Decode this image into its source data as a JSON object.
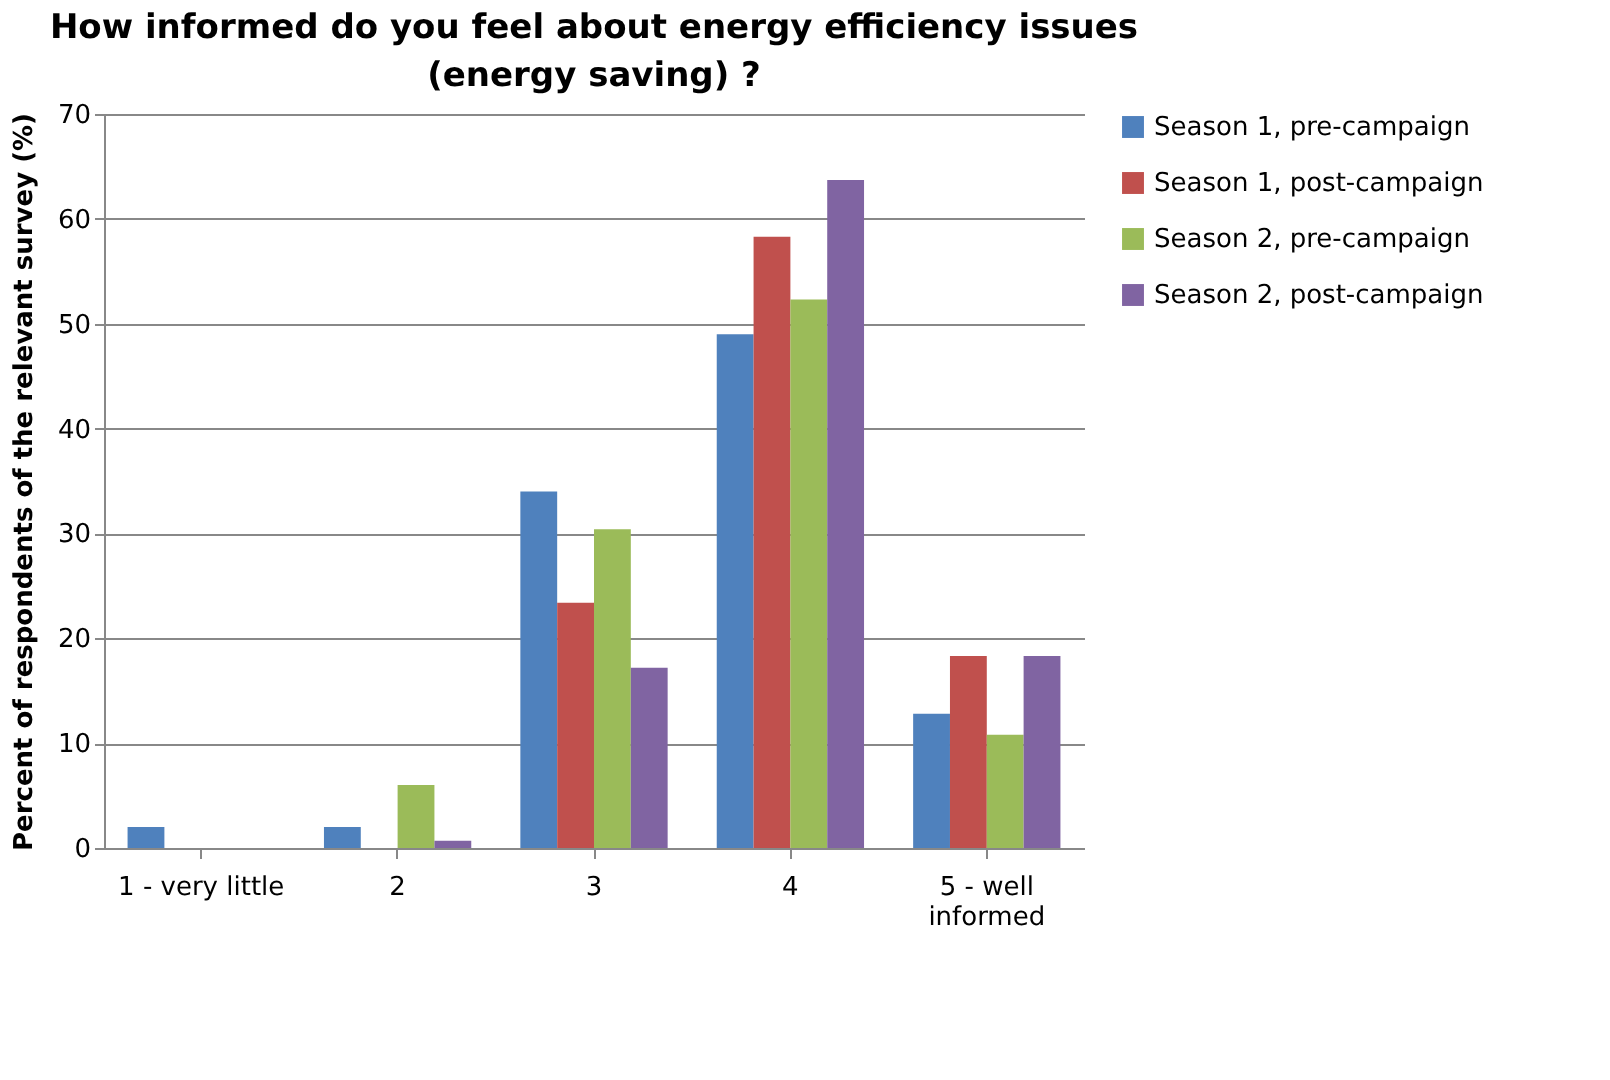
{
  "chart_data": {
    "type": "bar",
    "title": "How informed do you feel about energy efficiency issues (energy saving) ?",
    "ylabel": "Percent of respondents of the relevant survey (%)",
    "categories": [
      "1 - very little",
      "2",
      "3",
      "4",
      "5 - well informed"
    ],
    "series": [
      {
        "name": "Season 1, pre-campaign",
        "color": "#4f81bd",
        "values": [
          2,
          2,
          34,
          49,
          12.8
        ]
      },
      {
        "name": "Season 1, post-campaign",
        "color": "#c0504d",
        "values": [
          0,
          0,
          23.4,
          58.3,
          18.3
        ]
      },
      {
        "name": "Season 2, pre-campaign",
        "color": "#9bbb59",
        "values": [
          0,
          6,
          30.4,
          52.3,
          10.8
        ]
      },
      {
        "name": "Season 2, post-campaign",
        "color": "#8064a2",
        "values": [
          0,
          0.7,
          17.2,
          63.7,
          18.3
        ]
      }
    ],
    "ylim": [
      0,
      70
    ],
    "yticks": [
      0,
      10,
      20,
      30,
      40,
      50,
      60,
      70
    ],
    "grid": "y",
    "legend": "right"
  }
}
